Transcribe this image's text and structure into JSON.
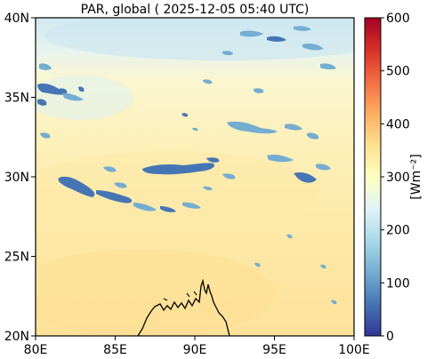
{
  "title": "PAR, global ( 2025-12-05 05:40 UTC)",
  "map": {
    "lon_range": [
      80,
      100
    ],
    "lat_range": [
      20,
      40
    ],
    "x_ticks": [
      "80E",
      "85E",
      "90E",
      "95E",
      "100E"
    ],
    "y_ticks": [
      "20N",
      "25N",
      "30N",
      "35N",
      "40N"
    ]
  },
  "colorbar": {
    "label": "[Wm⁻²]",
    "range": [
      0,
      600
    ],
    "ticks": [
      "0",
      "100",
      "200",
      "300",
      "400",
      "500",
      "600"
    ],
    "colormap": "RdYlBu_r",
    "colors": [
      "#313695",
      "#4575b4",
      "#74add1",
      "#abd9e9",
      "#e0f3f8",
      "#ffffbf",
      "#fee090",
      "#fdae61",
      "#f46d43",
      "#d73027",
      "#a50026"
    ]
  }
}
